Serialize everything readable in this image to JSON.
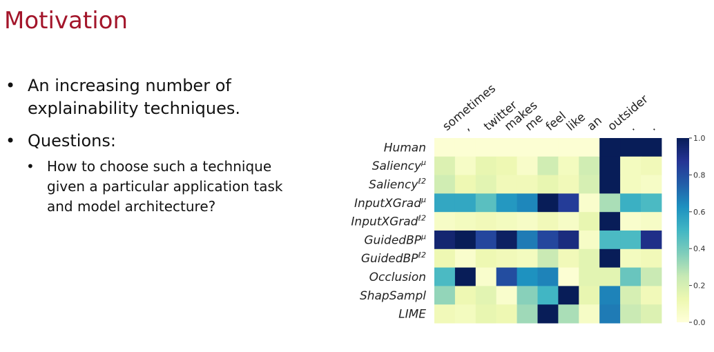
{
  "slide": {
    "title": "Motivation",
    "bullets": [
      {
        "text": "An increasing number of explainability techniques."
      },
      {
        "text": "Questions:",
        "sub": [
          {
            "text": "How to choose such a technique given a particular application task and model architecture?"
          }
        ]
      }
    ]
  },
  "chart_data": {
    "type": "heatmap",
    "colormap": "YlGnBu",
    "x_labels": [
      "sometimes",
      ",",
      "twitter",
      "makes",
      "me",
      "feel",
      "like",
      "an",
      "outsider",
      ".",
      "."
    ],
    "y_labels": [
      {
        "base": "Human",
        "sup": ""
      },
      {
        "base": "Saliency",
        "sup": "μ"
      },
      {
        "base": "Saliency",
        "sup": "ℓ2"
      },
      {
        "base": "InputXGrad",
        "sup": "μ"
      },
      {
        "base": "InputXGrad",
        "sup": "ℓ2"
      },
      {
        "base": "GuidedBP",
        "sup": "μ"
      },
      {
        "base": "GuidedBP",
        "sup": "ℓ2"
      },
      {
        "base": "Occlusion",
        "sup": ""
      },
      {
        "base": "ShapSampl",
        "sup": ""
      },
      {
        "base": "LIME",
        "sup": ""
      }
    ],
    "values": [
      [
        0.02,
        0.02,
        0.02,
        0.02,
        0.02,
        0.02,
        0.02,
        0.02,
        1.0,
        1.0,
        1.0
      ],
      [
        0.18,
        0.06,
        0.14,
        0.12,
        0.05,
        0.22,
        0.08,
        0.22,
        1.0,
        0.08,
        0.1
      ],
      [
        0.22,
        0.12,
        0.16,
        0.1,
        0.1,
        0.14,
        0.1,
        0.2,
        1.0,
        0.08,
        0.06
      ],
      [
        0.55,
        0.55,
        0.45,
        0.6,
        0.65,
        1.0,
        0.85,
        0.04,
        0.3,
        0.52,
        0.48
      ],
      [
        0.06,
        0.08,
        0.1,
        0.08,
        0.06,
        0.1,
        0.06,
        0.14,
        1.0,
        0.04,
        0.06
      ],
      [
        0.95,
        1.0,
        0.82,
        0.98,
        0.68,
        0.82,
        0.92,
        0.06,
        0.48,
        0.48,
        0.9
      ],
      [
        0.12,
        0.04,
        0.12,
        0.1,
        0.08,
        0.24,
        0.1,
        0.16,
        1.0,
        0.08,
        0.1
      ],
      [
        0.48,
        1.0,
        0.04,
        0.8,
        0.62,
        0.66,
        0.02,
        0.16,
        0.16,
        0.42,
        0.24
      ],
      [
        0.34,
        0.12,
        0.16,
        0.04,
        0.36,
        0.5,
        1.0,
        0.14,
        0.66,
        0.2,
        0.1
      ],
      [
        0.1,
        0.08,
        0.14,
        0.12,
        0.32,
        1.0,
        0.3,
        0.06,
        0.68,
        0.24,
        0.18
      ]
    ],
    "colorbar": {
      "min": 0.0,
      "max": 1.0,
      "ticks": [
        "0.0",
        "0.2",
        "0.4",
        "0.6",
        "0.8",
        "1.0"
      ]
    }
  }
}
